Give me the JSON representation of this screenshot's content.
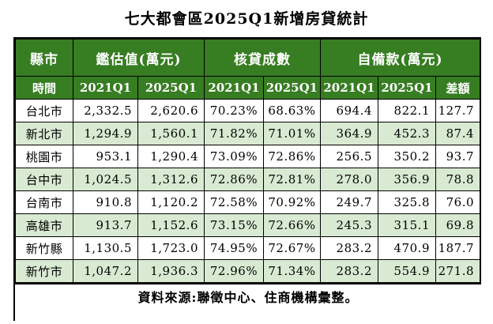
{
  "chart_data": {
    "type": "table",
    "title": "七大都會區2025Q1新增房貸統計",
    "column_groups": [
      {
        "label": "縣市",
        "colspan": 1
      },
      {
        "label": "鑑估值(萬元)",
        "colspan": 2
      },
      {
        "label": "核貸成數",
        "colspan": 2
      },
      {
        "label": "自備款(萬元)",
        "colspan": 3
      }
    ],
    "columns": [
      "時間",
      "2021Q1",
      "2025Q1",
      "2021Q1",
      "2025Q1",
      "2021Q1",
      "2025Q1",
      "差額"
    ],
    "rows": [
      {
        "city": "台北市",
        "values": [
          "2,332.5",
          "2,620.6",
          "70.23%",
          "68.63%",
          "694.4",
          "822.1",
          "127.7"
        ]
      },
      {
        "city": "新北市",
        "values": [
          "1,294.9",
          "1,560.1",
          "71.82%",
          "71.01%",
          "364.9",
          "452.3",
          "87.4"
        ]
      },
      {
        "city": "桃園市",
        "values": [
          "953.1",
          "1,290.4",
          "73.09%",
          "72.86%",
          "256.5",
          "350.2",
          "93.7"
        ]
      },
      {
        "city": "台中市",
        "values": [
          "1,024.5",
          "1,312.6",
          "72.86%",
          "72.81%",
          "278.0",
          "356.9",
          "78.8"
        ]
      },
      {
        "city": "台南市",
        "values": [
          "910.8",
          "1,120.2",
          "72.58%",
          "70.92%",
          "249.7",
          "325.8",
          "76.0"
        ]
      },
      {
        "city": "高雄市",
        "values": [
          "913.7",
          "1,152.6",
          "73.15%",
          "72.66%",
          "245.3",
          "315.1",
          "69.8"
        ]
      },
      {
        "city": "新竹縣",
        "values": [
          "1,130.5",
          "1,723.0",
          "74.95%",
          "72.67%",
          "283.2",
          "470.9",
          "187.7"
        ]
      },
      {
        "city": "新竹市",
        "values": [
          "1,047.2",
          "1,936.3",
          "72.96%",
          "71.34%",
          "283.2",
          "554.9",
          "271.8"
        ]
      }
    ],
    "source_note": "資料來源:聯徵中心、住商機構彙整。"
  },
  "colors": {
    "header_bg": "#377d22",
    "header_text": "#ffffff",
    "alt_row_bg": "#d9ead3",
    "border": "#000000"
  }
}
